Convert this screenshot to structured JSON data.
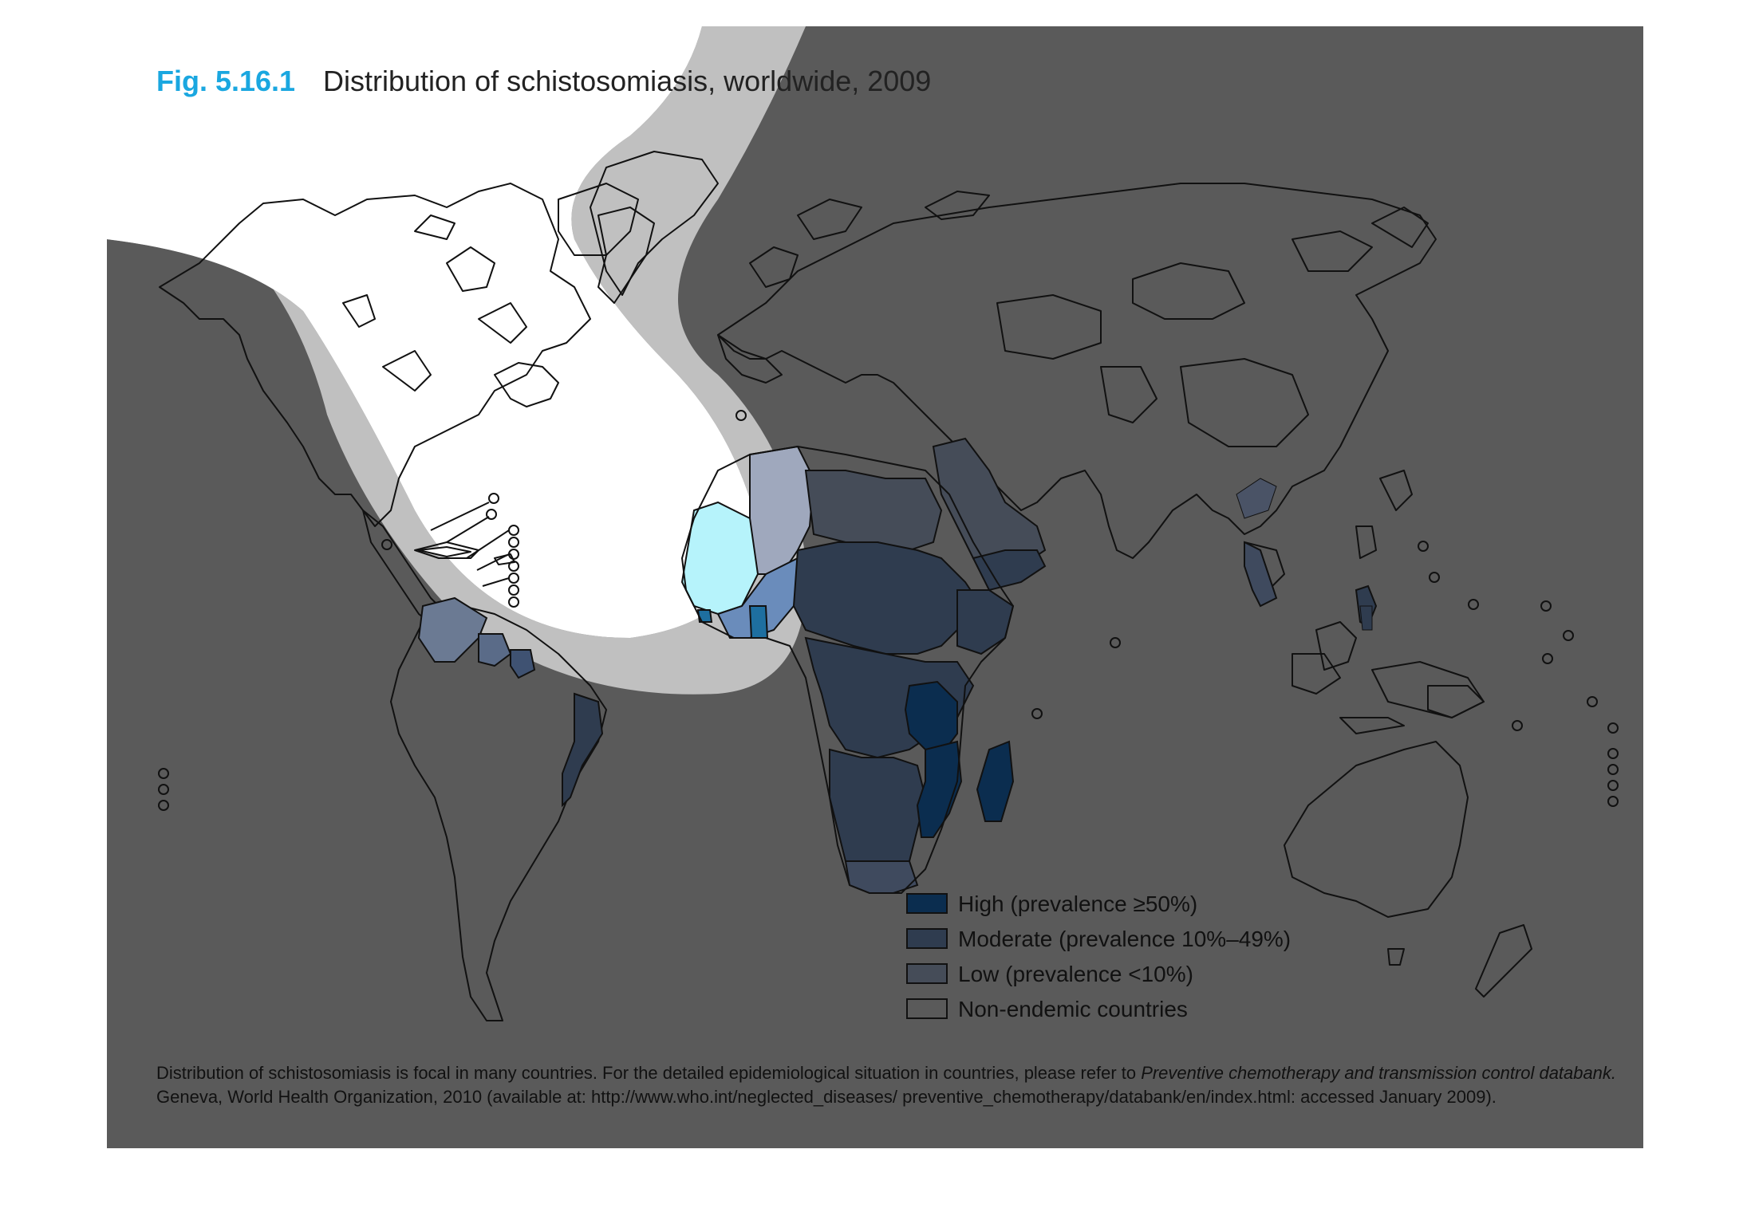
{
  "title": {
    "fig_label": "Fig. 5.16.1",
    "text": "Distribution of schistosomiasis, worldwide, 2009"
  },
  "legend": [
    {
      "label": "High (prevalence ≥50%)",
      "color": "#0b2d4f"
    },
    {
      "label": "Moderate (prevalence 10%–49%)",
      "color": "#2f3c4f"
    },
    {
      "label": "Low (prevalence <10%)",
      "color": "#454c58"
    },
    {
      "label": "Non-endemic countries",
      "color": "none"
    }
  ],
  "footnote": {
    "line1_plain": "Distribution of schistosomiasis is focal in many countries. For the detailed epidemiological situation in countries, please refer to ",
    "line1_italic": "Preventive chemotherapy and transmission control databank.",
    "line2": "Geneva, World Health Organization, 2010 (available at: http://www.who.int/neglected_diseases/ preventive_chemotherapy/databank/en/index.html: accessed January 2009)."
  },
  "colors": {
    "background": "#5a5a5a",
    "halo": "#c0c0c0",
    "spotlight": "#ffffff",
    "fig_label": "#1aa7e0",
    "high": "#0b2d4f",
    "moderate": "#2f3c4f",
    "low": "#454c58"
  }
}
